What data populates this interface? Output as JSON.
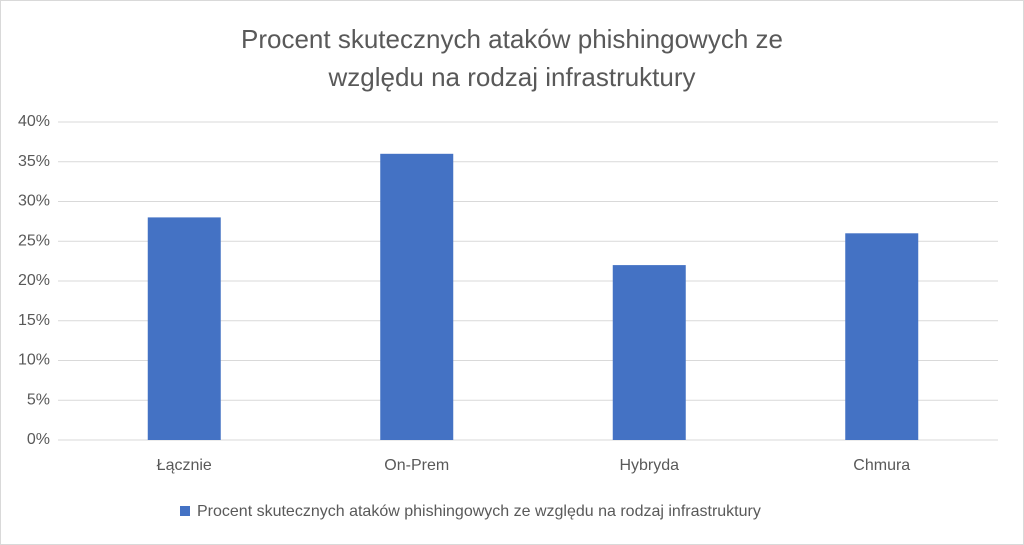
{
  "chart_data": {
    "type": "bar",
    "title": "Procent skutecznych ataków phishingowych ze względu na rodzaj infrastruktury",
    "categories": [
      "Łącznie",
      "On-Prem",
      "Hybryda",
      "Chmura"
    ],
    "series": [
      {
        "name": "Procent skutecznych ataków phishingowych ze względu na rodzaj infrastruktury",
        "color": "#4472c4",
        "values": [
          28,
          36,
          22,
          26
        ]
      }
    ],
    "ylim": [
      0,
      40
    ],
    "yticks": [
      {
        "value": 0,
        "label": "0%"
      },
      {
        "value": 5,
        "label": "5%"
      },
      {
        "value": 10,
        "label": "10%"
      },
      {
        "value": 15,
        "label": "15%"
      },
      {
        "value": 20,
        "label": "20%"
      },
      {
        "value": 25,
        "label": "25%"
      },
      {
        "value": 30,
        "label": "30%"
      },
      {
        "value": 35,
        "label": "35%"
      },
      {
        "value": 40,
        "label": "40%"
      }
    ],
    "grid": true,
    "legend": "bottom"
  }
}
